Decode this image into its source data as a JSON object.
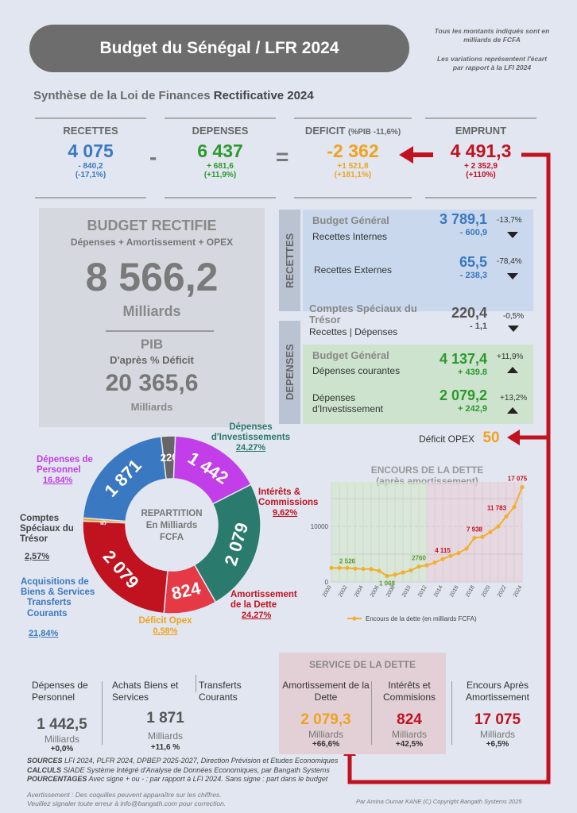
{
  "header": {
    "title": "Budget du Sénégal / LFR 2024",
    "note1": "Tous les montants indiqués sont en milliards de FCFA",
    "note2": "Les variations représentent l'écart par rapport à la LFI 2024",
    "subtitle_a": "Synthèse de la Loi de Finances ",
    "subtitle_b": "Rectificative 2024"
  },
  "kpis": {
    "recettes": {
      "label": "RECETTES",
      "value": "4 075",
      "delta": "- 840,2",
      "pct": "(-17,1%)"
    },
    "depenses": {
      "label": "DEPENSES",
      "value": "6 437",
      "delta": "+ 681,6",
      "pct": "(+11,9%)"
    },
    "deficit": {
      "label": "DEFICIT",
      "label_note": "(%PIB -11,6%)",
      "value": "-2 362",
      "delta": "+1 521,8",
      "pct": "(+181,1%)"
    },
    "emprunt": {
      "label": "EMPRUNT",
      "value": "4 491,3",
      "delta": "+ 2 352,9",
      "pct": "(+110%)"
    },
    "op_minus": "-",
    "op_equals": "="
  },
  "budget": {
    "title": "BUDGET RECTIFIE",
    "subtitle": "Dépenses + Amortissement + OPEX",
    "value": "8 566,2",
    "unit": "Milliards",
    "pib_title": "PIB",
    "pib_sub": "D'après % Déficit",
    "pib_value": "20 365,6",
    "pib_unit": "Milliards"
  },
  "recettes_panel": {
    "tab": "RECETTES",
    "bg_title": "Budget Général",
    "internes_label": "Recettes Internes",
    "internes_value": "3 789,1",
    "internes_delta": "- 600,9",
    "internes_pct": "-13,7%",
    "externes_label": "Recettes Externes",
    "externes_value": "65,5",
    "externes_delta": "- 238,3",
    "externes_pct": "-78,4%"
  },
  "cst": {
    "title": "Comptes Spéciaux du Trésor",
    "label": "Recettes | Dépenses",
    "value": "220,4",
    "delta": "- 1,1",
    "pct": "-0,5%"
  },
  "depenses_panel": {
    "tab": "DEPENSES",
    "bg_title": "Budget Général",
    "courantes_label": "Dépenses courantes",
    "courantes_value": "4 137,4",
    "courantes_delta": "+ 439.8",
    "courantes_pct": "+11,9%",
    "invest_label": "Dépenses d'Investissement",
    "invest_value": "2 079,2",
    "invest_delta": "+ 242,9",
    "invest_pct": "+13,2%"
  },
  "deficit_opex": {
    "label": "Déficit OPEX",
    "value": "50"
  },
  "donut": {
    "center1": "REPARTITION",
    "center2": "En Milliards",
    "center3": "FCFA",
    "labels": {
      "invest": "Dépenses d'Investissements",
      "invest_pct": "24,27%",
      "interets": "Intérêts & Commissions",
      "interets_pct": "9,62%",
      "amort": "Amortissement de la Dette",
      "amort_pct": "24,27%",
      "opex": "Déficit Opex",
      "opex_pct": "0,58%",
      "acq": "Acquisitions de Biens & Services",
      "transferts": "Transferts Courants",
      "acq_pct": "21,84%",
      "cst": "Comptes Spéciaux du Trésor",
      "cst_pct": "2,57%",
      "perso": "Dépenses de Personnel",
      "perso_pct": "16,84%"
    }
  },
  "chart_data": [
    {
      "type": "pie",
      "categories": [
        "Dépenses d'Investissements",
        "Intérêts & Commissions",
        "Amortissement de la Dette",
        "Déficit Opex",
        "Acquisitions de Biens & Services / Transferts Courants",
        "Comptes Spéciaux du Trésor",
        "Dépenses de Personnel"
      ],
      "values": [
        2079,
        824,
        2079,
        50,
        1871,
        220,
        1442
      ],
      "value_labels": [
        "2 079",
        "824",
        "2 079",
        "50",
        "1 871",
        "220",
        "1 442"
      ],
      "colors": [
        "#2b7a6e",
        "#e63946",
        "#c1121f",
        "#f0a21e",
        "#3a78c2",
        "#666666",
        "#c13ee8"
      ]
    },
    {
      "type": "line",
      "title": "ENCOURS DE LA DETTE",
      "subtitle": "(après amortissement)",
      "series": [
        {
          "name": "Encours de la dette (en milliards FCFA)",
          "x": [
            2000,
            2001,
            2002,
            2003,
            2004,
            2005,
            2006,
            2007,
            2008,
            2009,
            2010,
            2011,
            2012,
            2013,
            2014,
            2015,
            2016,
            2017,
            2018,
            2019,
            2020,
            2021,
            2022,
            2023,
            2024
          ],
          "values": [
            2526,
            2526,
            2526,
            2400,
            2350,
            2300,
            2000,
            1068,
            1300,
            1700,
            2100,
            2760,
            3000,
            3500,
            4115,
            4700,
            5200,
            6000,
            7938,
            8100,
            9000,
            10000,
            11783,
            13500,
            17075
          ]
        }
      ],
      "data_labels": {
        "2526": "2 526",
        "1068": "1 068",
        "2760": "2760",
        "4115": "4 115",
        "7938": "7 938",
        "11783": "11 783",
        "17075": "17 075"
      },
      "xticks": [
        "2000",
        "2002",
        "2004",
        "2006",
        "2008",
        "2010",
        "2012",
        "2014",
        "2016",
        "2018",
        "2020",
        "2022",
        "2024"
      ],
      "yticks": [
        "0",
        "10000"
      ],
      "ylim": [
        0,
        18000
      ],
      "legend": "bottom",
      "color": "#f0b030"
    }
  ],
  "bottom": {
    "service_title": "SERVICE DE LA DETTE",
    "perso": {
      "t": "Dépenses de Personnel",
      "v": "1 442,5",
      "u": "Milliards",
      "d": "+0,0%"
    },
    "achats": {
      "t": "Achats Biens et Services",
      "v": "1 871",
      "u": "Milliards",
      "d": "+11,6 %"
    },
    "transferts": {
      "t": "Transferts Courants"
    },
    "amort": {
      "t": "Amortissement de la Dette",
      "v": "2 079,3",
      "u": "Milliards",
      "d": "+66,6%"
    },
    "interets": {
      "t": "Intérêts et Commisions",
      "v": "824",
      "u": "Milliards",
      "d": "+42,5%"
    },
    "encours": {
      "t": "Encours Après Amortissement",
      "v": "17 075",
      "u": "Milliards",
      "d": "+6,5%"
    }
  },
  "footer": {
    "sources_k": "SOURCES",
    "sources_v": " LFI 2024, PLFR 2024, DPBEP 2025-2027, Direction Prévision et Etudes Economiques",
    "calculs_k": "CALCULS",
    "calculs_v": " SIADE Système Intégré d'Analyse de Données Economiques, par Bangath Systems",
    "pct_k": "POURCENTAGES",
    "pct_v": " Avec signe + ou - : par rapport à LFI 2024.  Sans signe : part dans le budget",
    "warn1": "Avertissement : Des coquilles peuvent apparaître sur les chiffres.",
    "warn2": "Veuillez signaler toute erreur à info@bangath.com pour correction.",
    "credit": "Par Amina Oumar KANE (C) Copyright Bangath Systems 2025"
  }
}
